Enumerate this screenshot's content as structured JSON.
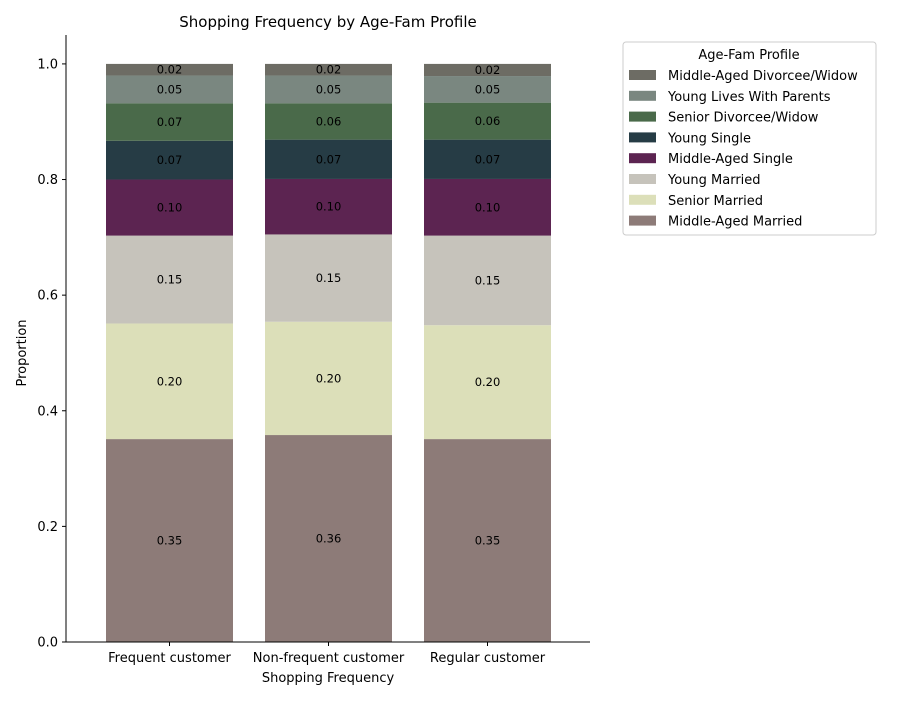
{
  "chart_data": {
    "type": "bar",
    "stacked": true,
    "title": "Shopping Frequency by Age-Fam Profile",
    "xlabel": "Shopping Frequency",
    "ylabel": "Proportion",
    "ylim": [
      0,
      1.05
    ],
    "yticks": [
      "0.0",
      "0.2",
      "0.4",
      "0.6",
      "0.8",
      "1.0"
    ],
    "categories": [
      "Frequent customer",
      "Non-frequent customer",
      "Regular customer"
    ],
    "series": [
      {
        "name": "Middle-Aged Married",
        "color": "#8d7b78",
        "values": [
          0.351,
          0.358,
          0.351
        ]
      },
      {
        "name": "Senior Married",
        "color": "#dcdfb9",
        "values": [
          0.2,
          0.196,
          0.197
        ]
      },
      {
        "name": "Young Married",
        "color": "#c6c3bb",
        "values": [
          0.152,
          0.151,
          0.155
        ]
      },
      {
        "name": "Middle-Aged Single",
        "color": "#5c2451",
        "values": [
          0.097,
          0.096,
          0.098
        ]
      },
      {
        "name": "Young Single",
        "color": "#263c45",
        "values": [
          0.067,
          0.068,
          0.068
        ]
      },
      {
        "name": "Senior Divorcee/Widow",
        "color": "#4a6a4a",
        "values": [
          0.065,
          0.063,
          0.064
        ]
      },
      {
        "name": "Young Lives With Parents",
        "color": "#7a8780",
        "values": [
          0.048,
          0.048,
          0.046
        ]
      },
      {
        "name": "Middle-Aged Divorcee/Widow",
        "color": "#6d6c64",
        "values": [
          0.02,
          0.02,
          0.021
        ]
      }
    ],
    "data_labels": [
      [
        "0.35",
        "0.36",
        "0.35"
      ],
      [
        "0.20",
        "0.20",
        "0.20"
      ],
      [
        "0.15",
        "0.15",
        "0.15"
      ],
      [
        "0.10",
        "0.10",
        "0.10"
      ],
      [
        "0.07",
        "0.07",
        "0.07"
      ],
      [
        "0.07",
        "0.06",
        "0.06"
      ],
      [
        "0.05",
        "0.05",
        "0.05"
      ],
      [
        "0.02",
        "0.02",
        "0.02"
      ]
    ],
    "legend": {
      "title": "Age-Fam Profile",
      "placement": "outside-top-right",
      "order": [
        "Middle-Aged Divorcee/Widow",
        "Young Lives With Parents",
        "Senior Divorcee/Widow",
        "Young Single",
        "Middle-Aged Single",
        "Young Married",
        "Senior Married",
        "Middle-Aged Married"
      ]
    },
    "grid": false
  }
}
